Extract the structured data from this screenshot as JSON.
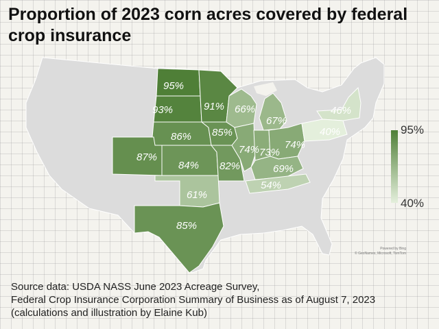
{
  "title": "Proportion of 2023 corn acres covered by federal crop insurance",
  "colors": {
    "base_state": "#dcdcdc",
    "state_border": "#ffffff",
    "scale_low": "#e4efdc",
    "scale_high": "#4f7f37"
  },
  "legend": {
    "max_label": "95%",
    "min_label": "40%",
    "max_value": 95,
    "min_value": 40
  },
  "states": [
    {
      "name": "North Dakota",
      "label": "95%",
      "value": 95
    },
    {
      "name": "South Dakota",
      "label": "93%",
      "value": 93
    },
    {
      "name": "Minnesota",
      "label": "91%",
      "value": 91
    },
    {
      "name": "Nebraska",
      "label": "86%",
      "value": 86
    },
    {
      "name": "Colorado",
      "label": "87%",
      "value": 87
    },
    {
      "name": "Kansas",
      "label": "84%",
      "value": 84
    },
    {
      "name": "Iowa",
      "label": "85%",
      "value": 85
    },
    {
      "name": "Missouri",
      "label": "82%",
      "value": 82
    },
    {
      "name": "Wisconsin",
      "label": "66%",
      "value": 66
    },
    {
      "name": "Michigan",
      "label": "67%",
      "value": 67
    },
    {
      "name": "Illinois",
      "label": "74%",
      "value": 74
    },
    {
      "name": "Indiana",
      "label": "73%",
      "value": 73
    },
    {
      "name": "Ohio",
      "label": "74%",
      "value": 74
    },
    {
      "name": "Kentucky",
      "label": "69%",
      "value": 69
    },
    {
      "name": "Tennessee",
      "label": "54%",
      "value": 54
    },
    {
      "name": "Oklahoma",
      "label": "61%",
      "value": 61
    },
    {
      "name": "Texas",
      "label": "85%",
      "value": 85
    },
    {
      "name": "New York",
      "label": "46%",
      "value": 46
    },
    {
      "name": "Pennsylvania",
      "label": "40%",
      "value": 40
    }
  ],
  "map_credit": [
    "Powered by Bing",
    "© GeoNames, Microsoft, TomTom"
  ],
  "source_lines": [
    "Source data: USDA NASS June 2023 Acreage Survey,",
    "Federal Crop Insurance Corporation Summary of Business as of August 7, 2023",
    "(calculations and illustration by Elaine Kub)"
  ]
}
